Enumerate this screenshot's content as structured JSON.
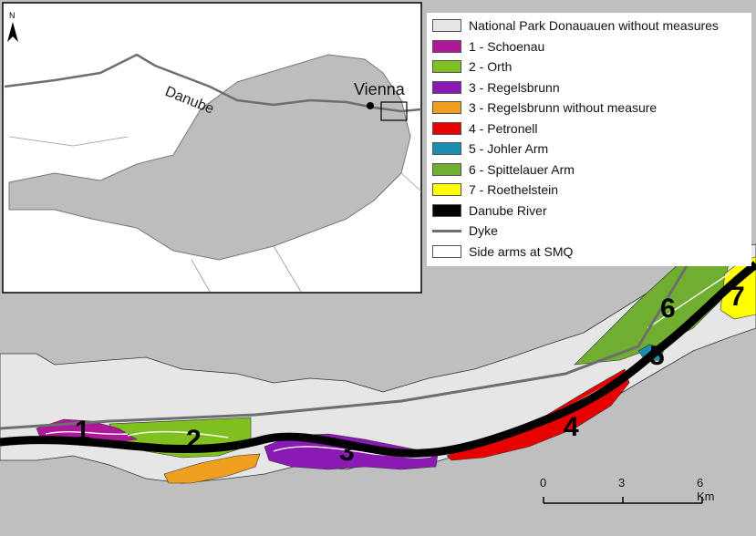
{
  "north_label": "N",
  "inset": {
    "river_label": "Danube",
    "city_label": "Vienna"
  },
  "legend": [
    {
      "label": "National Park Donauauen without measures",
      "color": "#e6e6e6",
      "kind": "fill"
    },
    {
      "label": "1 - Schoenau",
      "color": "#b0189a",
      "kind": "fill"
    },
    {
      "label": "2 - Orth",
      "color": "#7fbf1f",
      "kind": "fill"
    },
    {
      "label": "3 - Regelsbrunn",
      "color": "#8a1ab3",
      "kind": "fill"
    },
    {
      "label": "3 - Regelsbrunn without measure",
      "color": "#f0a020",
      "kind": "fill"
    },
    {
      "label": "4 - Petronell",
      "color": "#e60000",
      "kind": "fill"
    },
    {
      "label": "5 - Johler Arm",
      "color": "#1a8fb0",
      "kind": "fill"
    },
    {
      "label": "6 - Spittelauer Arm",
      "color": "#6fae2e",
      "kind": "fill"
    },
    {
      "label": "7 - Roethelstein",
      "color": "#ffff00",
      "kind": "fill"
    },
    {
      "label": "Danube River",
      "color": "#000000",
      "kind": "fill"
    },
    {
      "label": "Dyke",
      "color": "#6e6e6e",
      "kind": "line"
    },
    {
      "label": "Side arms at SMQ",
      "color": "#ffffff",
      "kind": "fill"
    }
  ],
  "area_numbers": [
    "1",
    "2",
    "3",
    "4",
    "5",
    "6",
    "7"
  ],
  "scale": {
    "ticks": [
      "0",
      "3",
      "6 Km"
    ]
  }
}
